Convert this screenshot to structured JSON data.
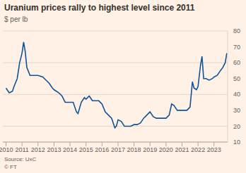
{
  "chart_data": {
    "type": "line",
    "title": "Uranium prices rally to highest level since 2011",
    "subtitle": "$ per lb",
    "source": "Source: UxC",
    "credit": "© FT",
    "x": [
      2010.0,
      2010.2,
      2010.4,
      2010.5,
      2010.7,
      2010.85,
      2011.0,
      2011.1,
      2011.2,
      2011.3,
      2011.5,
      2011.7,
      2011.9,
      2012.0,
      2012.3,
      2012.5,
      2012.7,
      2012.9,
      2013.0,
      2013.3,
      2013.5,
      2013.7,
      2013.9,
      2014.2,
      2014.4,
      2014.5,
      2014.7,
      2014.9,
      2015.0,
      2015.2,
      2015.4,
      2015.6,
      2015.8,
      2016.0,
      2016.2,
      2016.4,
      2016.6,
      2016.8,
      2016.9,
      2017.0,
      2017.2,
      2017.4,
      2017.6,
      2017.8,
      2018.0,
      2018.2,
      2018.4,
      2018.6,
      2018.8,
      2019.0,
      2019.2,
      2019.4,
      2019.6,
      2019.8,
      2020.0,
      2020.2,
      2020.35,
      2020.5,
      2020.7,
      2020.9,
      2021.0,
      2021.3,
      2021.5,
      2021.65,
      2021.75,
      2021.9,
      2022.0,
      2022.15,
      2022.25,
      2022.35,
      2022.5,
      2022.7,
      2022.9,
      2023.0,
      2023.2,
      2023.4,
      2023.55,
      2023.7,
      2023.8
    ],
    "series": [
      {
        "name": "Uranium",
        "color": "#0f5499",
        "values": [
          44,
          41,
          42,
          45,
          50,
          60,
          66,
          73,
          67,
          57,
          52,
          52,
          52,
          52,
          51,
          49,
          47,
          44,
          43,
          41,
          39,
          35,
          35,
          35,
          29,
          28,
          35,
          38,
          37,
          39,
          36,
          36,
          36,
          34,
          29,
          27,
          25,
          19,
          20,
          24,
          23,
          20,
          20,
          20,
          21,
          21,
          22,
          25,
          27,
          29,
          26,
          25,
          25,
          25,
          25,
          27,
          34,
          33,
          30,
          30,
          30,
          30,
          32,
          48,
          44,
          43,
          45,
          58,
          64,
          50,
          50,
          49,
          50,
          51,
          52,
          55,
          57,
          60,
          66
        ]
      }
    ],
    "xlim": [
      2009.8,
      2023.85
    ],
    "xticks": [
      2010,
      2011,
      2012,
      2013,
      2014,
      2015,
      2016,
      2017,
      2018,
      2019,
      2020,
      2021,
      2022,
      2023
    ],
    "ylim": [
      10,
      80
    ],
    "yticks": [
      10,
      20,
      30,
      40,
      50,
      60,
      70,
      80
    ],
    "grid": true
  }
}
